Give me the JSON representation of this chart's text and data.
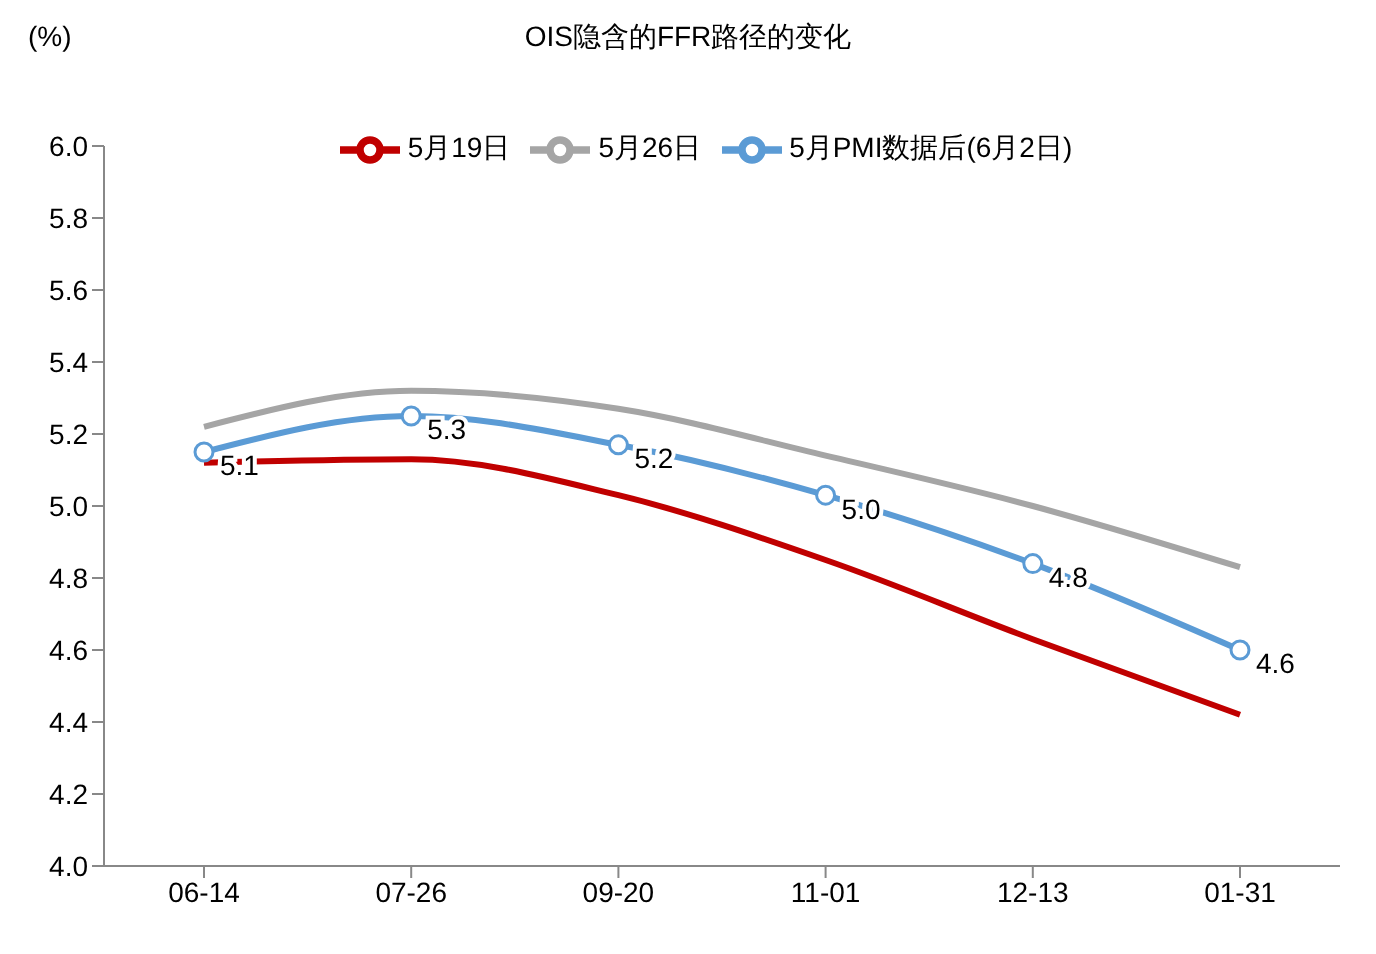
{
  "chart_data": {
    "type": "line",
    "title": "OIS隐含的FFR路径的变化",
    "ylabel": "(%)",
    "categories": [
      "06-14",
      "07-26",
      "09-20",
      "11-01",
      "12-13",
      "01-31"
    ],
    "series": [
      {
        "name": "5月PMI数据后(6月2日)",
        "color": "#5b9bd5",
        "values": [
          5.15,
          5.25,
          5.17,
          5.03,
          4.84,
          4.6
        ],
        "marker": "circle",
        "value_labels": [
          "5.1",
          "5.3",
          "5.2",
          "5.0",
          "4.8",
          "4.6"
        ]
      },
      {
        "name": "5月26日",
        "color": "#a5a5a5",
        "values": [
          5.22,
          5.32,
          5.27,
          5.14,
          5.0,
          4.83
        ]
      },
      {
        "name": "5月19日",
        "color": "#c00000",
        "values": [
          5.12,
          5.13,
          5.03,
          4.85,
          4.63,
          4.42
        ]
      }
    ],
    "ylim": [
      4.0,
      6.0
    ],
    "yticks": [
      {
        "value": 4.0,
        "label": "4.0"
      },
      {
        "value": 4.2,
        "label": "4.2"
      },
      {
        "value": 4.4,
        "label": "4.4"
      },
      {
        "value": 4.6,
        "label": "4.6"
      },
      {
        "value": 4.8,
        "label": "4.8"
      },
      {
        "value": 5.0,
        "label": "5.0"
      },
      {
        "value": 5.2,
        "label": "5.2"
      },
      {
        "value": 5.4,
        "label": "5.4"
      },
      {
        "value": 5.6,
        "label": "5.6"
      },
      {
        "value": 5.8,
        "label": "5.8"
      },
      {
        "value": 6.0,
        "label": "6.0"
      }
    ],
    "grid": false,
    "legend": "top",
    "line_style": "solid"
  }
}
